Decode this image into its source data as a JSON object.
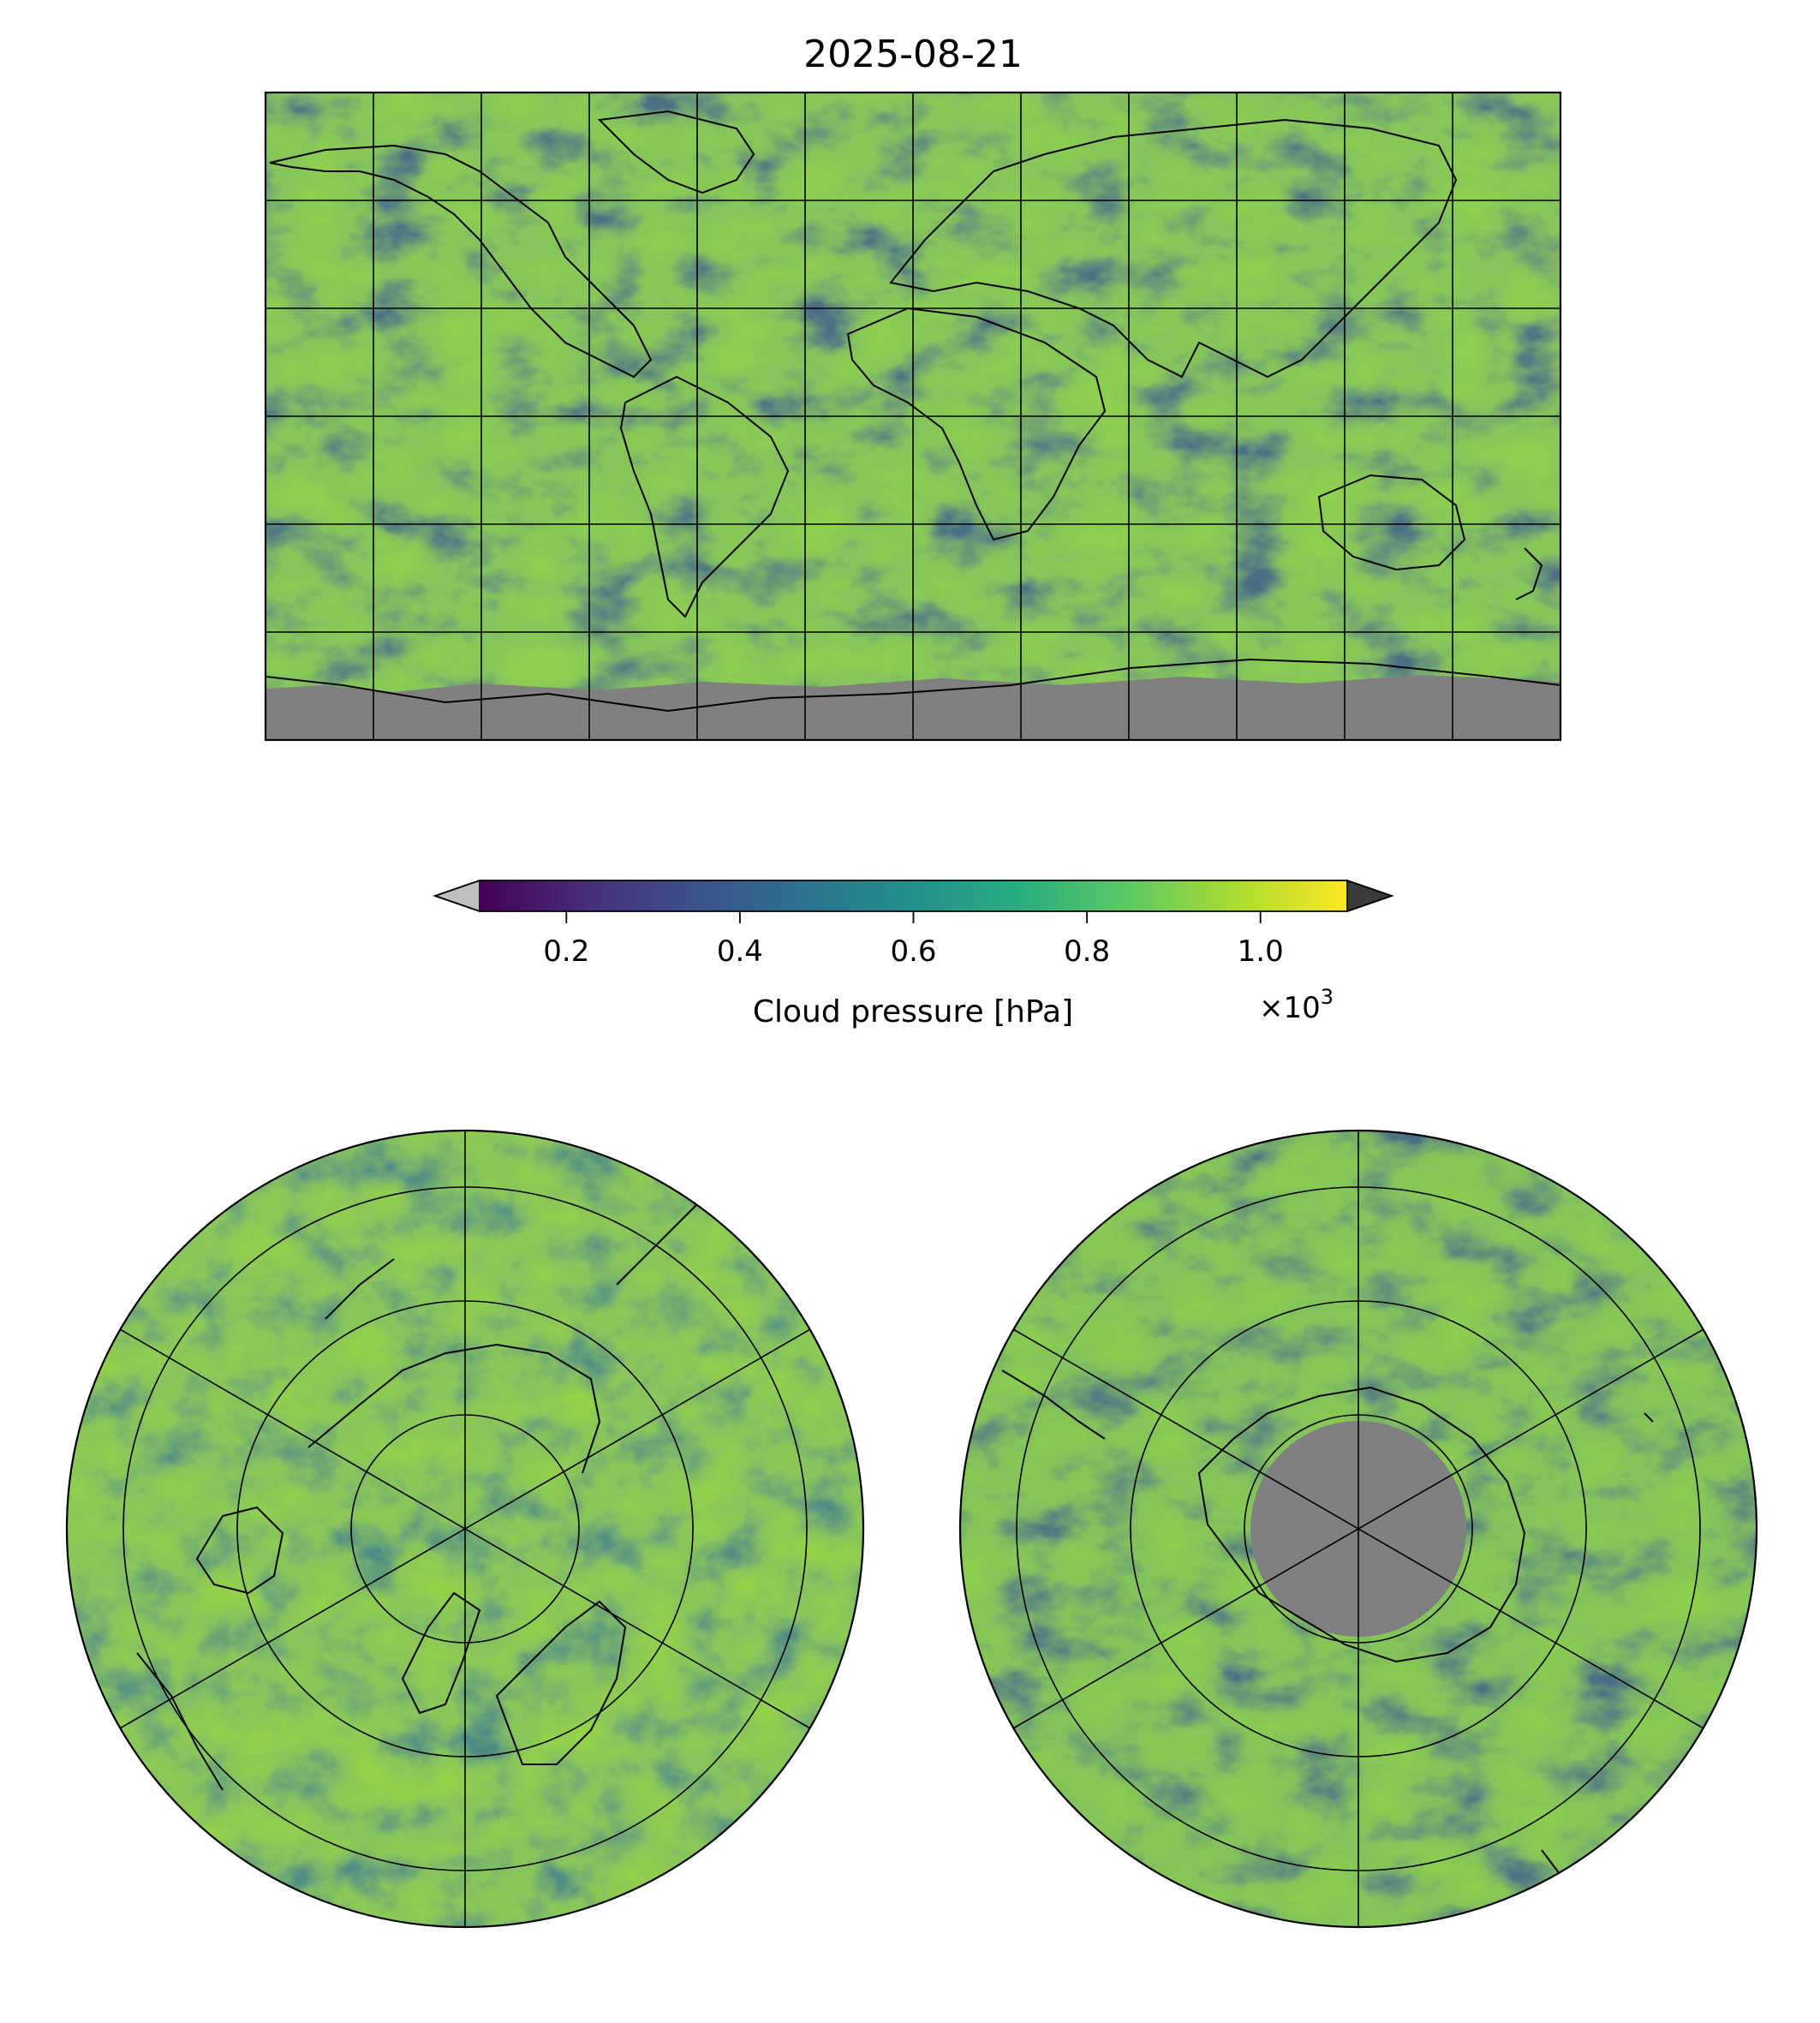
{
  "title": "2025-08-21",
  "colorbar": {
    "label": "Cloud pressure [hPa]",
    "multiplier": "×10",
    "multiplier_exponent": "3",
    "ticks": [
      "0.2",
      "0.4",
      "0.6",
      "0.8",
      "1.0"
    ],
    "tick_values": [
      0.2,
      0.4,
      0.6,
      0.8,
      1.0
    ],
    "range": [
      0.1,
      1.1
    ],
    "colormap": "viridis",
    "colormap_stops": [
      "#440154",
      "#472d7b",
      "#3b528b",
      "#2c728e",
      "#21918c",
      "#28ae80",
      "#5ec962",
      "#addc30",
      "#fde725"
    ],
    "under_color": "#bfbfbf",
    "over_color": "#3a3a3a"
  },
  "maps": {
    "global": {
      "projection": "plate-carree",
      "no_data_color": "#808080",
      "gridlines": true
    },
    "north_polar": {
      "projection": "north-polar-stereographic",
      "gridlines": true
    },
    "south_polar": {
      "projection": "south-polar-stereographic",
      "no_data_color": "#808080",
      "gridlines": true
    }
  }
}
